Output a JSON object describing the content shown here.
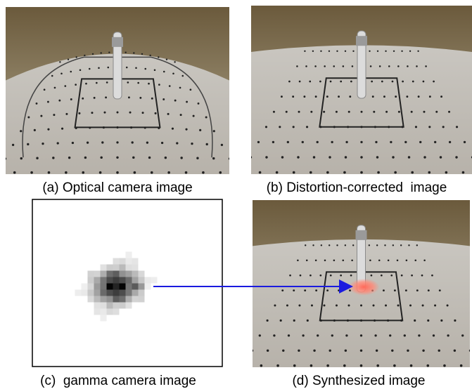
{
  "figure": {
    "panels": [
      {
        "caption": "(a) Optical camera image"
      },
      {
        "caption": "(b) Distortion-corrected  image"
      },
      {
        "caption": "(c)  gamma camera image"
      },
      {
        "caption": "(d) Synthesized image"
      }
    ]
  }
}
